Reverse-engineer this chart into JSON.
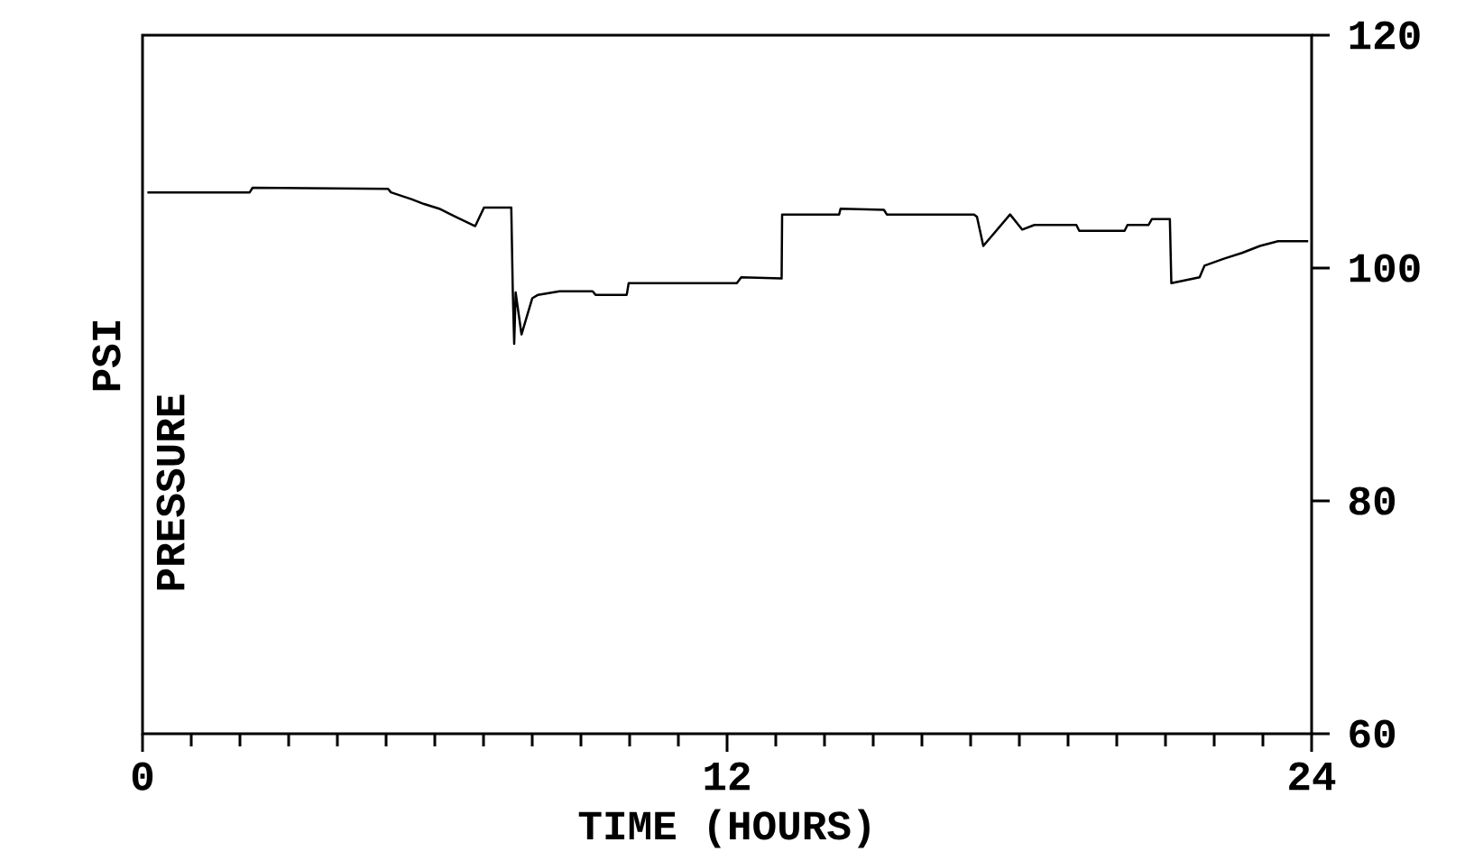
{
  "chart_data": {
    "type": "line",
    "xlabel": "TIME (HOURS)",
    "ylabel": "PRESSURE",
    "annotations": [
      "PSI"
    ],
    "xlim": [
      0,
      24
    ],
    "ylim": [
      60,
      120
    ],
    "xticks": [
      0,
      {
        "value": 1,
        "label": null
      },
      {
        "value": 2,
        "label": null
      },
      {
        "value": 3,
        "label": null
      },
      {
        "value": 4,
        "label": null
      },
      {
        "value": 5,
        "label": null
      },
      {
        "value": 6,
        "label": null
      },
      {
        "value": 7,
        "label": null
      },
      {
        "value": 8,
        "label": null
      },
      {
        "value": 9,
        "label": null
      },
      {
        "value": 10,
        "label": null
      },
      {
        "value": 11,
        "label": null
      },
      12,
      {
        "value": 13,
        "label": null
      },
      {
        "value": 14,
        "label": null
      },
      {
        "value": 15,
        "label": null
      },
      {
        "value": 16,
        "label": null
      },
      {
        "value": 17,
        "label": null
      },
      {
        "value": 18,
        "label": null
      },
      {
        "value": 19,
        "label": null
      },
      {
        "value": 20,
        "label": null
      },
      {
        "value": 21,
        "label": null
      },
      {
        "value": 22,
        "label": null
      },
      {
        "value": 23,
        "label": null
      },
      24
    ],
    "yticks": [
      60,
      80,
      100,
      120
    ],
    "series": [
      {
        "color": "#000000",
        "x": [
          0.1,
          2.2,
          2.26,
          5.04,
          5.1,
          5.53,
          5.78,
          6.09,
          6.33,
          6.58,
          6.83,
          7.01,
          7.57,
          7.6,
          7.63,
          7.66,
          7.78,
          8.0,
          8.12,
          8.56,
          9.24,
          9.3,
          9.94,
          9.98,
          12.2,
          12.29,
          13.12,
          13.13,
          14.3,
          14.33,
          15.22,
          15.28,
          17.07,
          17.13,
          17.26,
          17.81,
          18.06,
          18.31,
          19.17,
          19.23,
          20.16,
          20.22,
          20.65,
          20.72,
          21.09,
          21.12,
          21.7,
          21.8,
          22.2,
          22.57,
          22.94,
          23.31,
          23.93
        ],
        "values": [
          106.5,
          106.5,
          106.9,
          106.8,
          106.5,
          105.9,
          105.5,
          105.1,
          104.6,
          104.1,
          103.6,
          105.2,
          105.2,
          98.2,
          93.5,
          97.9,
          94.3,
          97.4,
          97.7,
          98.0,
          98.0,
          97.7,
          97.7,
          98.7,
          98.7,
          99.2,
          99.1,
          104.6,
          104.6,
          105.1,
          105.0,
          104.6,
          104.6,
          104.4,
          101.9,
          104.6,
          103.3,
          103.7,
          103.7,
          103.2,
          103.2,
          103.7,
          103.7,
          104.2,
          104.2,
          98.7,
          99.2,
          100.2,
          100.8,
          101.3,
          101.9,
          102.3,
          102.3
        ]
      }
    ]
  }
}
